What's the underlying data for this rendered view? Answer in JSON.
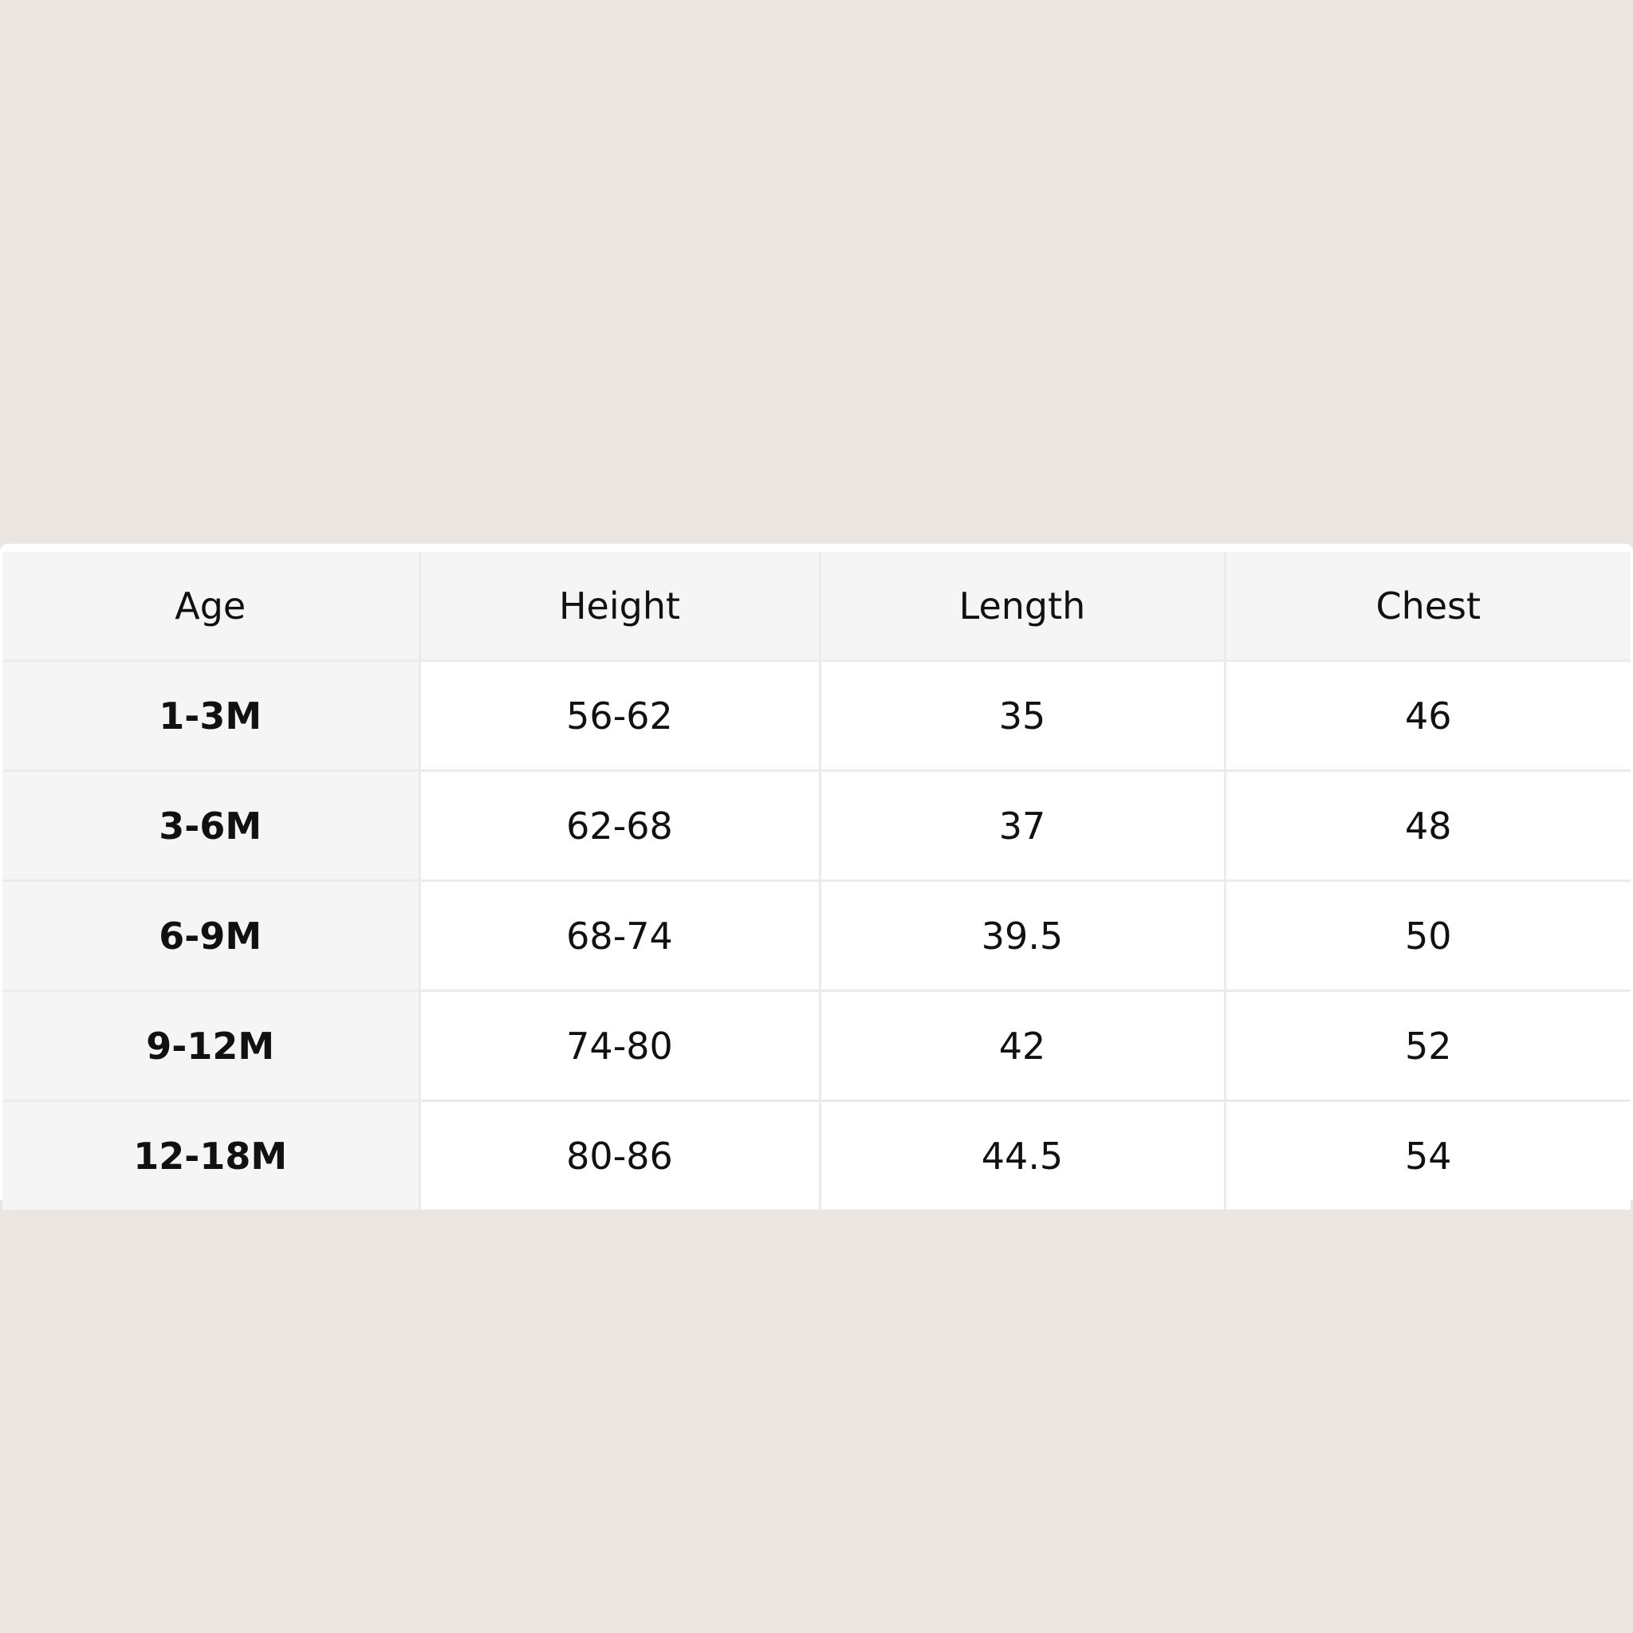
{
  "table": {
    "header": [
      "Age",
      "Height",
      "Length",
      "Chest"
    ],
    "rows": [
      [
        "1-3M",
        "56-62",
        "35",
        "46"
      ],
      [
        "3-6M",
        "62-68",
        "37",
        "48"
      ],
      [
        "6-9M",
        "68-74",
        "39.5",
        "50"
      ],
      [
        "9-12M",
        "74-80",
        "42",
        "52"
      ],
      [
        "12-18M",
        "80-86",
        "44.5",
        "54"
      ]
    ]
  }
}
